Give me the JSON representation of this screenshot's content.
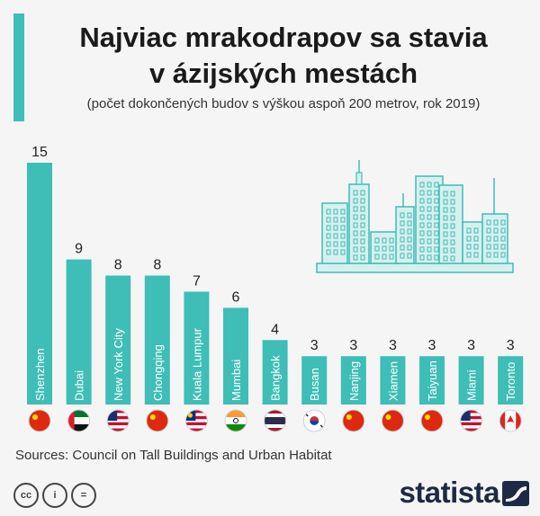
{
  "header": {
    "title_line1": "Najviac mrakodrapov sa stavia",
    "title_line2": "v ázijských mestách",
    "subtitle": "(počet dokončených budov s výškou aspoň 200 metrov, rok 2019)"
  },
  "footer": {
    "source": "Sources: Council on Tall Buildings and Urban Habitat",
    "cc_labels": [
      "cc",
      "i",
      "="
    ],
    "brand": "statista"
  },
  "colors": {
    "bar": "#3fbdb7",
    "bar_label": "#ffffff",
    "value_label": "#222222",
    "illustration_fill": "#d7f0ef",
    "illustration_stroke": "#3fbdb7"
  },
  "chart_data": {
    "type": "bar",
    "categories": [
      "Shenzhen",
      "Dubai",
      "New York City",
      "Chongqing",
      "Kuala Lumpur",
      "Mumbai",
      "Bangkok",
      "Busan",
      "Nanjing",
      "Xiamen",
      "Taiyuan",
      "Miami",
      "Toronto"
    ],
    "values": [
      15,
      9,
      8,
      8,
      7,
      6,
      4,
      3,
      3,
      3,
      3,
      3,
      3
    ],
    "flags": [
      "china",
      "uae",
      "usa",
      "china",
      "malaysia",
      "india",
      "thailand",
      "south-korea",
      "china",
      "china",
      "china",
      "usa",
      "canada"
    ],
    "ylim": [
      0,
      15
    ],
    "grid": false,
    "legend": "none"
  }
}
